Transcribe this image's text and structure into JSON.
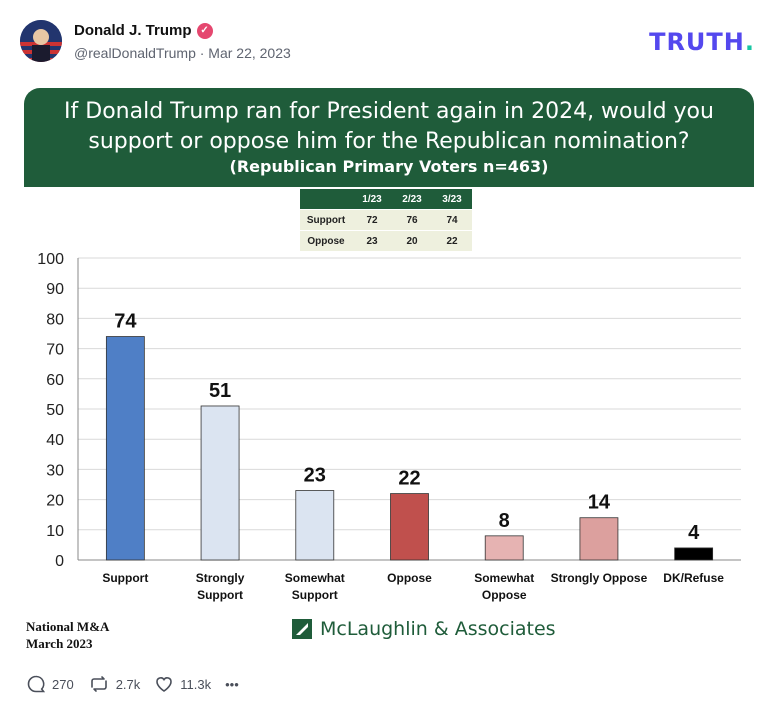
{
  "post": {
    "author_name": "Donald J. Trump",
    "handle_date": "@realDonaldTrump · Mar 22, 2023",
    "logo_text": "TRUTH",
    "logo_dot": "."
  },
  "banner": {
    "question": "If Donald Trump ran for President again in 2024, would you support or oppose him for the Republican nomination?",
    "subtitle": "(Republican Primary Voters n=463)"
  },
  "mini_table": {
    "headers": [
      "1/23",
      "2/23",
      "3/23"
    ],
    "rows": [
      {
        "label": "Support",
        "values": [
          "72",
          "76",
          "74"
        ]
      },
      {
        "label": "Oppose",
        "values": [
          "23",
          "20",
          "22"
        ]
      }
    ]
  },
  "chart_data": {
    "type": "bar",
    "title": "If Donald Trump ran for President again in 2024, would you support or oppose him for the Republican nomination?",
    "categories": [
      "Support",
      "Strongly Support",
      "Somewhat Support",
      "Oppose",
      "Somewhat Oppose",
      "Strongly Oppose",
      "DK/Refuse"
    ],
    "category_lines": [
      [
        "Support"
      ],
      [
        "Strongly",
        "Support"
      ],
      [
        "Somewhat",
        "Support"
      ],
      [
        "Oppose"
      ],
      [
        "Somewhat",
        "Oppose"
      ],
      [
        "Strongly Oppose"
      ],
      [
        "DK/Refuse"
      ]
    ],
    "values": [
      74,
      51,
      23,
      22,
      8,
      14,
      4
    ],
    "colors": [
      "#4f7fc6",
      "#dbe4f1",
      "#dbe4f1",
      "#c0504d",
      "#e6b3b2",
      "#dca09e",
      "#000000"
    ],
    "yticks": [
      0,
      10,
      20,
      30,
      40,
      50,
      60,
      70,
      80,
      90,
      100
    ],
    "ylim": [
      0,
      100
    ],
    "grid": true
  },
  "footer": {
    "source_line1": "National M&A",
    "source_line2": "March 2023",
    "firm": "McLaughlin & Associates"
  },
  "actions": {
    "replies": "270",
    "reposts": "2.7k",
    "likes": "11.3k",
    "more": "•••"
  }
}
